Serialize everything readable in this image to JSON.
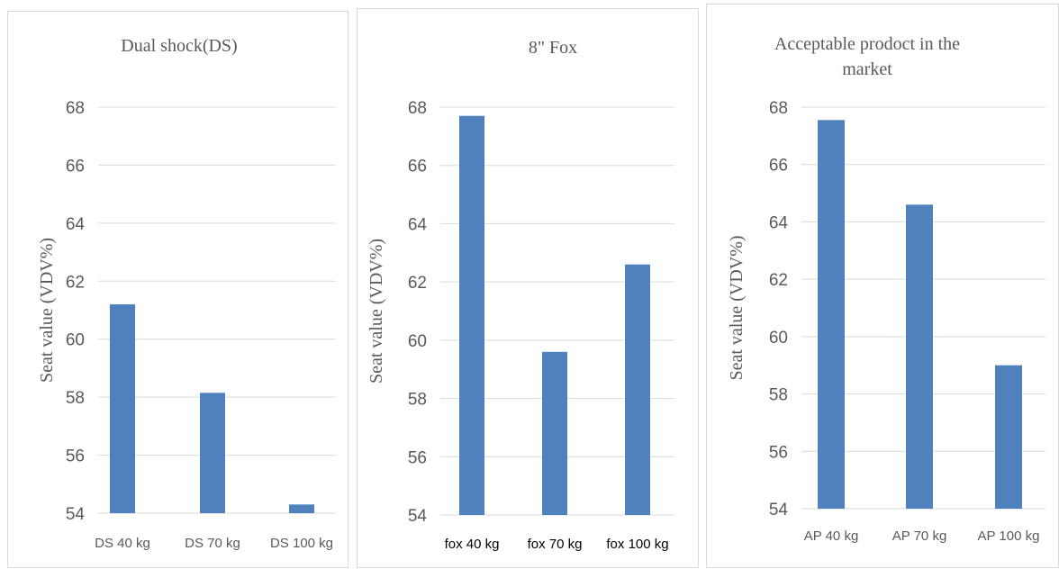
{
  "chart_data": [
    {
      "type": "bar",
      "title": [
        "Dual shock(DS)"
      ],
      "ylabel": "Seat value (VDV%)",
      "xlabel": "",
      "categories": [
        "DS 40 kg",
        "DS 70 kg",
        "DS 100 kg"
      ],
      "values": [
        61.2,
        58.15,
        54.3
      ],
      "ylim": [
        54,
        68
      ],
      "yticks": [
        "54",
        "56",
        "58",
        "60",
        "62",
        "64",
        "66",
        "68"
      ],
      "grid": true,
      "bar_color": "#4f81bd",
      "category_color": "#595959"
    },
    {
      "type": "bar",
      "title": [
        "8\" Fox"
      ],
      "ylabel": "Seat value (VDV%)",
      "xlabel": "",
      "categories": [
        "fox 40 kg",
        "fox 70 kg",
        "fox 100 kg"
      ],
      "values": [
        67.7,
        59.6,
        62.6
      ],
      "ylim": [
        54,
        68
      ],
      "yticks": [
        "54",
        "56",
        "58",
        "60",
        "62",
        "64",
        "66",
        "68"
      ],
      "grid": true,
      "bar_color": "#4f81bd",
      "category_color": "#000000"
    },
    {
      "type": "bar",
      "title": [
        "Acceptable prodoct in the",
        "market"
      ],
      "ylabel": "Seat value (VDV%)",
      "xlabel": "",
      "categories": [
        "AP 40 kg",
        "AP 70 kg",
        "AP 100 kg"
      ],
      "values": [
        67.55,
        64.6,
        59.0
      ],
      "ylim": [
        54,
        68
      ],
      "yticks": [
        "54",
        "56",
        "58",
        "60",
        "62",
        "64",
        "66",
        "68"
      ],
      "grid": true,
      "bar_color": "#4f81bd",
      "category_color": "#595959"
    }
  ]
}
